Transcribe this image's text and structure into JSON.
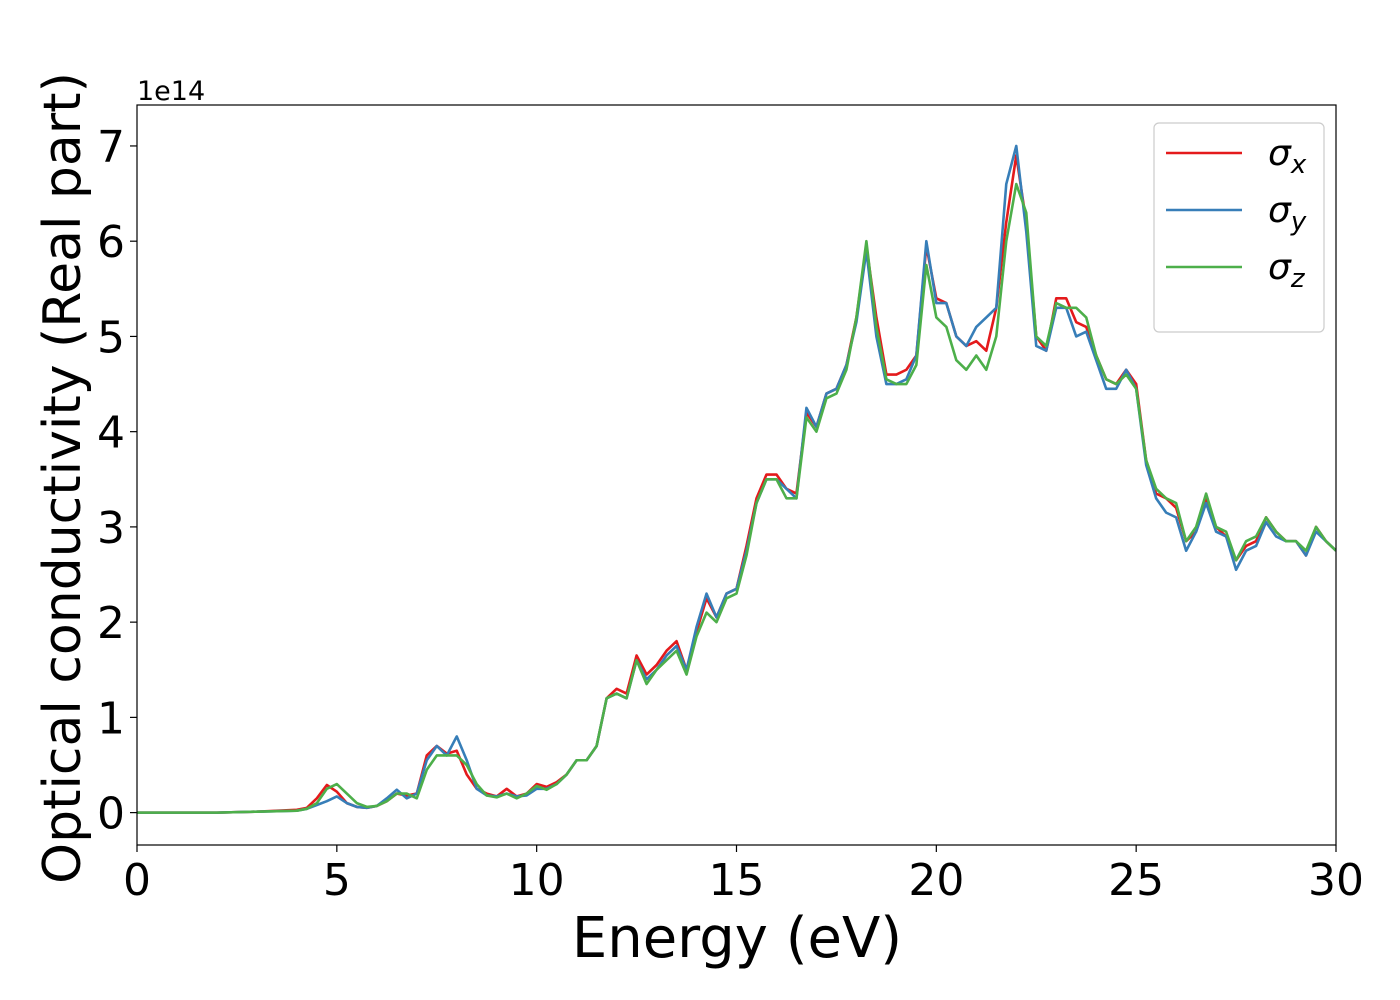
{
  "chart_data": {
    "type": "line",
    "xlabel": "Energy (eV)",
    "ylabel": "Optical conductivity (Real part)",
    "y_offset_text": "1e14",
    "xlim": [
      0,
      30
    ],
    "ylim": [
      -0.34,
      7.43
    ],
    "xticks": [
      0,
      5,
      10,
      15,
      20,
      25,
      30
    ],
    "yticks": [
      0,
      1,
      2,
      3,
      4,
      5,
      6,
      7
    ],
    "grid": false,
    "legend": "upper right",
    "x": [
      0,
      1,
      2,
      3,
      4,
      4.25,
      4.5,
      4.75,
      5,
      5.25,
      5.5,
      5.75,
      6,
      6.25,
      6.5,
      6.75,
      7,
      7.25,
      7.5,
      7.75,
      8,
      8.25,
      8.5,
      8.75,
      9,
      9.25,
      9.5,
      9.75,
      10,
      10.25,
      10.5,
      10.75,
      11,
      11.25,
      11.5,
      11.75,
      12,
      12.25,
      12.5,
      12.75,
      13,
      13.25,
      13.5,
      13.75,
      14,
      14.25,
      14.5,
      14.75,
      15,
      15.25,
      15.5,
      15.75,
      16,
      16.25,
      16.5,
      16.75,
      17,
      17.25,
      17.5,
      17.75,
      18,
      18.25,
      18.5,
      18.75,
      19,
      19.25,
      19.5,
      19.75,
      20,
      20.25,
      20.5,
      20.75,
      21,
      21.25,
      21.5,
      21.75,
      22,
      22.25,
      22.5,
      22.75,
      23,
      23.25,
      23.5,
      23.75,
      24,
      24.25,
      24.5,
      24.75,
      25,
      25.25,
      25.5,
      25.75,
      26,
      26.25,
      26.5,
      26.75,
      27,
      27.25,
      27.5,
      27.75,
      28,
      28.25,
      28.5,
      28.75,
      29,
      29.25,
      29.5,
      29.75,
      30
    ],
    "series": [
      {
        "name": "σx",
        "color": "#e41a1c",
        "values": [
          0,
          0,
          0,
          0.01,
          0.03,
          0.05,
          0.15,
          0.29,
          0.22,
          0.1,
          0.06,
          0.05,
          0.07,
          0.12,
          0.2,
          0.18,
          0.2,
          0.6,
          0.7,
          0.62,
          0.65,
          0.4,
          0.25,
          0.2,
          0.17,
          0.25,
          0.17,
          0.2,
          0.3,
          0.27,
          0.32,
          0.4,
          0.55,
          0.55,
          0.7,
          1.2,
          1.3,
          1.25,
          1.65,
          1.45,
          1.55,
          1.7,
          1.8,
          1.5,
          1.9,
          2.25,
          2.05,
          2.3,
          2.35,
          2.8,
          3.3,
          3.55,
          3.55,
          3.4,
          3.35,
          4.2,
          4.05,
          4.4,
          4.45,
          4.7,
          5.2,
          5.95,
          5.2,
          4.6,
          4.6,
          4.65,
          4.8,
          5.95,
          5.4,
          5.35,
          5.0,
          4.9,
          4.95,
          4.85,
          5.3,
          6.2,
          6.9,
          6.2,
          5.0,
          4.85,
          5.4,
          5.4,
          5.15,
          5.1,
          4.8,
          4.55,
          4.5,
          4.65,
          4.5,
          3.7,
          3.35,
          3.3,
          3.2,
          2.85,
          2.95,
          3.3,
          3.0,
          2.9,
          2.65,
          2.8,
          2.85,
          3.1,
          2.95,
          2.85,
          2.85,
          2.7,
          3.0,
          2.85,
          2.75
        ]
      },
      {
        "name": "σy",
        "color": "#377eb8",
        "values": [
          0,
          0,
          0,
          0.01,
          0.02,
          0.04,
          0.08,
          0.12,
          0.17,
          0.1,
          0.06,
          0.05,
          0.07,
          0.15,
          0.24,
          0.15,
          0.2,
          0.55,
          0.7,
          0.6,
          0.8,
          0.55,
          0.25,
          0.18,
          0.17,
          0.2,
          0.17,
          0.18,
          0.25,
          0.25,
          0.3,
          0.4,
          0.55,
          0.55,
          0.7,
          1.2,
          1.25,
          1.2,
          1.6,
          1.4,
          1.5,
          1.65,
          1.75,
          1.5,
          1.95,
          2.3,
          2.05,
          2.3,
          2.35,
          2.75,
          3.25,
          3.5,
          3.5,
          3.4,
          3.3,
          4.25,
          4.05,
          4.4,
          4.45,
          4.7,
          5.15,
          5.9,
          5.0,
          4.5,
          4.5,
          4.55,
          4.8,
          6.0,
          5.35,
          5.35,
          5.0,
          4.9,
          5.1,
          5.2,
          5.3,
          6.6,
          7.0,
          6.1,
          4.9,
          4.85,
          5.3,
          5.3,
          5.0,
          5.05,
          4.75,
          4.45,
          4.45,
          4.65,
          4.45,
          3.65,
          3.3,
          3.15,
          3.1,
          2.75,
          2.95,
          3.25,
          2.95,
          2.9,
          2.55,
          2.75,
          2.8,
          3.05,
          2.9,
          2.85,
          2.85,
          2.7,
          2.95,
          2.85,
          2.75
        ]
      },
      {
        "name": "σz",
        "color": "#4daf4a",
        "values": [
          0,
          0,
          0,
          0.01,
          0.02,
          0.04,
          0.1,
          0.25,
          0.3,
          0.2,
          0.1,
          0.06,
          0.07,
          0.12,
          0.2,
          0.2,
          0.15,
          0.45,
          0.6,
          0.6,
          0.6,
          0.5,
          0.3,
          0.18,
          0.16,
          0.2,
          0.15,
          0.2,
          0.28,
          0.24,
          0.3,
          0.4,
          0.55,
          0.55,
          0.7,
          1.2,
          1.25,
          1.2,
          1.6,
          1.35,
          1.5,
          1.6,
          1.7,
          1.45,
          1.85,
          2.1,
          2.0,
          2.25,
          2.3,
          2.7,
          3.25,
          3.5,
          3.5,
          3.3,
          3.3,
          4.15,
          4.0,
          4.35,
          4.4,
          4.65,
          5.2,
          6.0,
          5.1,
          4.55,
          4.5,
          4.5,
          4.7,
          5.75,
          5.2,
          5.1,
          4.75,
          4.65,
          4.8,
          4.65,
          5.0,
          6.0,
          6.6,
          6.3,
          5.0,
          4.9,
          5.35,
          5.3,
          5.3,
          5.2,
          4.8,
          4.55,
          4.5,
          4.6,
          4.45,
          3.7,
          3.4,
          3.3,
          3.25,
          2.85,
          3.0,
          3.35,
          3.0,
          2.95,
          2.65,
          2.85,
          2.9,
          3.1,
          2.95,
          2.85,
          2.85,
          2.75,
          3.0,
          2.85,
          2.75
        ]
      }
    ]
  }
}
